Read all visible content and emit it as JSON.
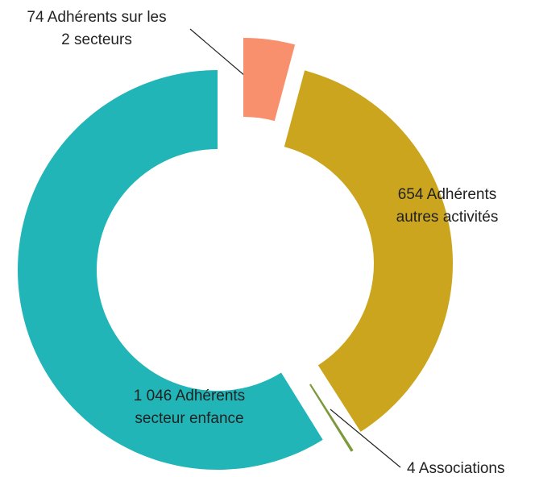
{
  "chart_data": {
    "type": "donut",
    "categories": [
      [
        "74 Adhérents sur les",
        "2 secteurs"
      ],
      [
        "654 Adhérents",
        "autres activités"
      ],
      [
        "4 Associations"
      ],
      [
        "1 046 Adhérents",
        "secteur enfance"
      ]
    ],
    "values": [
      74,
      654,
      4,
      1046
    ],
    "colors": [
      "#f8906e",
      "#cba51e",
      "#7c9a3c",
      "#21b5b8"
    ]
  }
}
